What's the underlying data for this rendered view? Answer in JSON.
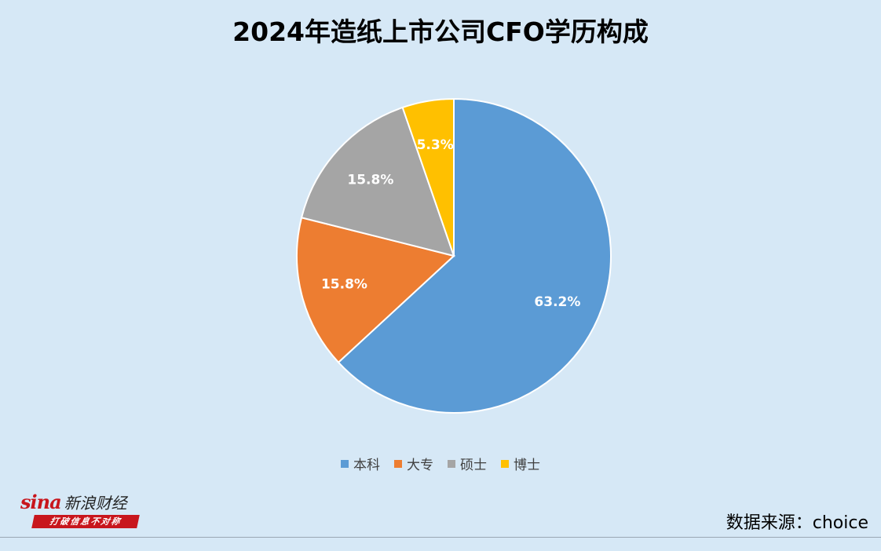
{
  "title": "2024年造纸上市公司CFO学历构成",
  "chart_data": {
    "type": "pie",
    "title": "2024年造纸上市公司CFO学历构成",
    "categories": [
      "本科",
      "大专",
      "硕士",
      "博士"
    ],
    "values": [
      63.2,
      15.8,
      15.8,
      5.3
    ],
    "labels": [
      "63.2%",
      "15.8%",
      "15.8%",
      "5.3%"
    ],
    "colors": [
      "#5b9bd5",
      "#ed7d31",
      "#a5a5a5",
      "#ffc000"
    ],
    "legend_position": "bottom",
    "start_angle": "12 o'clock",
    "direction": "clockwise"
  },
  "logo": {
    "brand": "sina",
    "name_cn": "新浪财经",
    "slogan": "打破信息不对称"
  },
  "source": "数据来源：choice"
}
